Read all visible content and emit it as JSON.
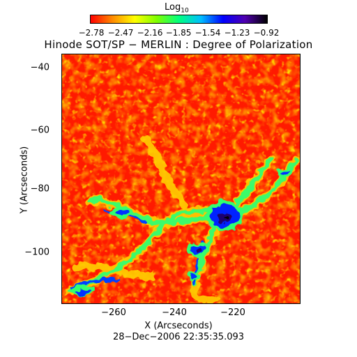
{
  "colorbar": {
    "title": "Log",
    "title_sub": "10",
    "ticks": [
      "−2.78",
      "−2.47",
      "−2.16",
      "−1.85",
      "−1.54",
      "−1.23",
      "−0.92"
    ],
    "colors": [
      "#ff0000",
      "#ff8c00",
      "#ffff00",
      "#7fff00",
      "#00ff7f",
      "#00bfff",
      "#0000ff",
      "#5000b0",
      "#000000"
    ]
  },
  "chart": {
    "title": "Hinode SOT/SP − MERLIN : Degree of Polarization",
    "xlabel": "X (Arcseconds)",
    "ylabel": "Y (Arcseconds)",
    "xticks": [
      "−260",
      "−240",
      "−220"
    ],
    "yticks": [
      "−40",
      "−60",
      "−80",
      "−100"
    ],
    "timestamp": "28−Dec−2006 22:35:35.093"
  },
  "chart_data": {
    "type": "heatmap",
    "title": "Hinode SOT/SP − MERLIN : Degree of Polarization",
    "xlabel": "X (Arcseconds)",
    "ylabel": "Y (Arcseconds)",
    "xlim": [
      -277,
      -203
    ],
    "ylim": [
      -117,
      -35
    ],
    "colorbar_range": [
      -2.78,
      -0.92
    ],
    "colorbar_label": "Log10"
  }
}
